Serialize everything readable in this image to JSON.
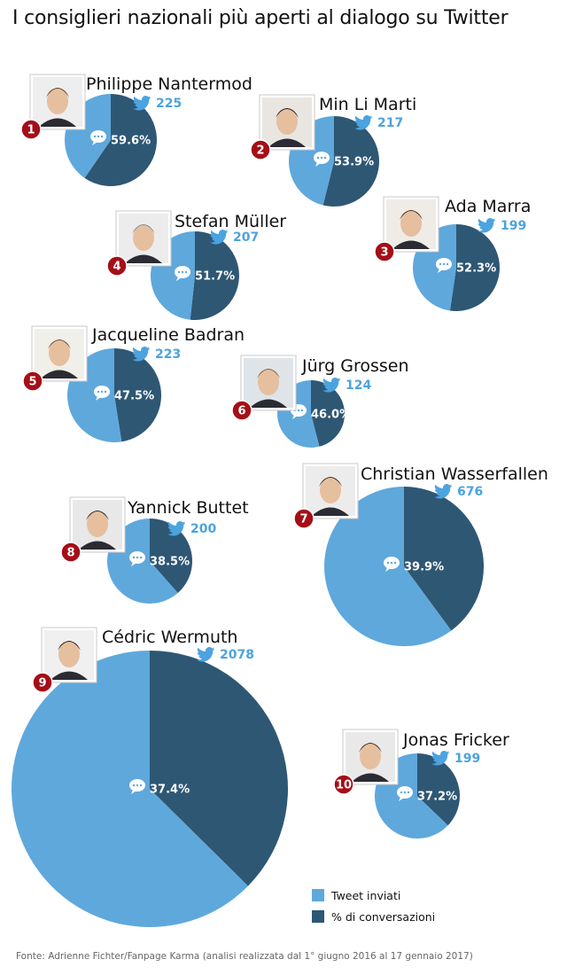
{
  "title": "I consiglieri nazionali più aperti al dialogo su Twitter",
  "legend": {
    "sent_label": "Tweet inviati",
    "conv_label": "% di conversazioni"
  },
  "colors": {
    "sent": "#5fa8dc",
    "conv": "#2e5774",
    "twitter": "#4ba3e0",
    "rank_badge": "#a50e17"
  },
  "source": "Fonte: Adrienne Fichter/Fanpage Karma (analisi realizzata dal 1° giugno 2016 al 17 gennaio 2017)",
  "chart_data": {
    "type": "pie",
    "series_labels": [
      "Tweet inviati",
      "% di conversazioni"
    ],
    "items": [
      {
        "rank": "1",
        "name": "Philippe Nantermod",
        "tweets": 225,
        "tweets_label": "225",
        "conversation_pct": 59.6,
        "pct_label": "59.6%"
      },
      {
        "rank": "2",
        "name": "Min Li Marti",
        "tweets": 217,
        "tweets_label": "217",
        "conversation_pct": 53.9,
        "pct_label": "53.9%"
      },
      {
        "rank": "3",
        "name": "Ada Marra",
        "tweets": 199,
        "tweets_label": "199",
        "conversation_pct": 52.3,
        "pct_label": "52.3%"
      },
      {
        "rank": "4",
        "name": "Stefan Müller",
        "tweets": 207,
        "tweets_label": "207",
        "conversation_pct": 51.7,
        "pct_label": "51.7%"
      },
      {
        "rank": "5",
        "name": "Jacqueline Badran",
        "tweets": 223,
        "tweets_label": "223",
        "conversation_pct": 47.5,
        "pct_label": "47.5%"
      },
      {
        "rank": "6",
        "name": "Jürg Grossen",
        "tweets": 124,
        "tweets_label": "124",
        "conversation_pct": 46.0,
        "pct_label": "46.0%"
      },
      {
        "rank": "7",
        "name": "Christian Wasserfallen",
        "tweets": 676,
        "tweets_label": "676",
        "conversation_pct": 39.9,
        "pct_label": "39.9%"
      },
      {
        "rank": "8",
        "name": "Yannick Buttet",
        "tweets": 200,
        "tweets_label": "200",
        "conversation_pct": 38.5,
        "pct_label": "38.5%"
      },
      {
        "rank": "9",
        "name": "Cédric Wermuth",
        "tweets": 2078,
        "tweets_label": "2078",
        "conversation_pct": 37.4,
        "pct_label": "37.4%"
      },
      {
        "rank": "10",
        "name": "Jonas Fricker",
        "tweets": 199,
        "tweets_label": "199",
        "conversation_pct": 37.2,
        "pct_label": "37.2%"
      }
    ]
  }
}
